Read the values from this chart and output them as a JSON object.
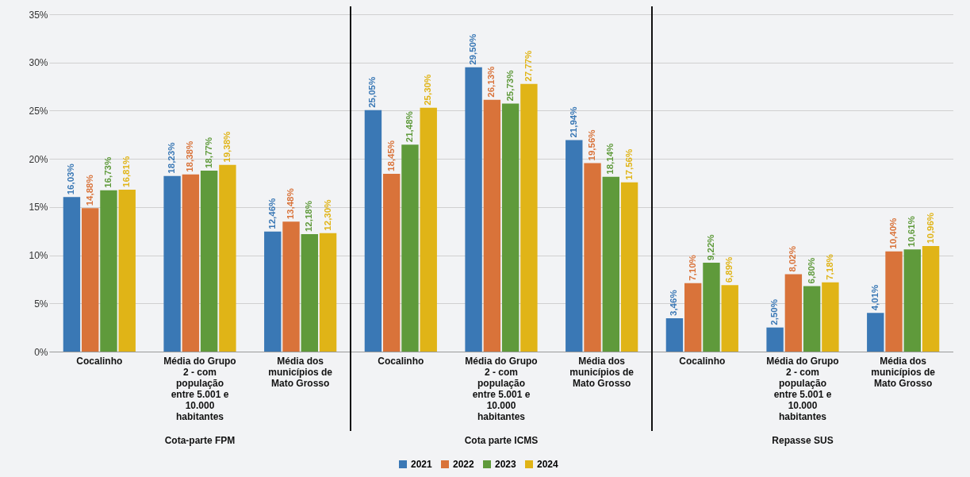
{
  "chart_data": {
    "type": "bar",
    "categories": [
      "Cocalinho",
      "Média do Grupo 2 - com população entre 5.001 e 10.000 habitantes",
      "Média dos municípios de Mato Grosso",
      "Cocalinho",
      "Média do Grupo 2 - com população entre 5.001 e 10.000 habitantes",
      "Média dos municípios de Mato Grosso",
      "Cocalinho",
      "Média do Grupo 2 - com população entre 5.001 e 10.000 habitantes",
      "Média dos municípios de Mato Grosso"
    ],
    "series": [
      {
        "name": "2021",
        "color": "#3a78b5",
        "values": [
          16.03,
          18.23,
          12.46,
          25.05,
          29.5,
          21.94,
          3.46,
          2.5,
          4.01
        ],
        "value_labels": [
          "16,03%",
          "18,23%",
          "12,46%",
          "25,05%",
          "29,50%",
          "21,94%",
          "3,46%",
          "2,50%",
          "4,01%"
        ]
      },
      {
        "name": "2022",
        "color": "#d9733a",
        "values": [
          14.88,
          18.38,
          13.48,
          18.45,
          26.13,
          19.56,
          7.1,
          8.02,
          10.4
        ],
        "value_labels": [
          "14,88%",
          "18,38%",
          "13,48%",
          "18,45%",
          "26,13%",
          "19,56%",
          "7,10%",
          "8,02%",
          "10,40%"
        ]
      },
      {
        "name": "2023",
        "color": "#5f9a3b",
        "values": [
          16.73,
          18.77,
          12.18,
          21.48,
          25.73,
          18.14,
          9.22,
          6.8,
          10.61
        ],
        "value_labels": [
          "16,73%",
          "18,77%",
          "12,18%",
          "21,48%",
          "25,73%",
          "18,14%",
          "9,22%",
          "6,80%",
          "10,61%"
        ]
      },
      {
        "name": "2024",
        "color": "#e0b417",
        "values": [
          16.81,
          19.38,
          12.3,
          25.3,
          27.77,
          17.56,
          6.89,
          7.18,
          10.96
        ],
        "value_labels": [
          "16,81%",
          "19,38%",
          "12,30%",
          "25,30%",
          "27,77%",
          "17,56%",
          "6,89%",
          "7,18%",
          "10,96%"
        ]
      }
    ],
    "ylim": [
      0,
      35
    ],
    "yticks": [
      {
        "value": 0,
        "label": "0%"
      },
      {
        "value": 5,
        "label": "5%"
      },
      {
        "value": 10,
        "label": "10%"
      },
      {
        "value": 15,
        "label": "15%"
      },
      {
        "value": 20,
        "label": "20%"
      },
      {
        "value": 25,
        "label": "25%"
      },
      {
        "value": 30,
        "label": "30%"
      },
      {
        "value": 35,
        "label": "35%"
      }
    ],
    "grid": "y",
    "legend": "bottom",
    "annotations": [
      "Cota-parte FPM",
      "Cota parte ICMS",
      "Repasse SUS"
    ]
  }
}
